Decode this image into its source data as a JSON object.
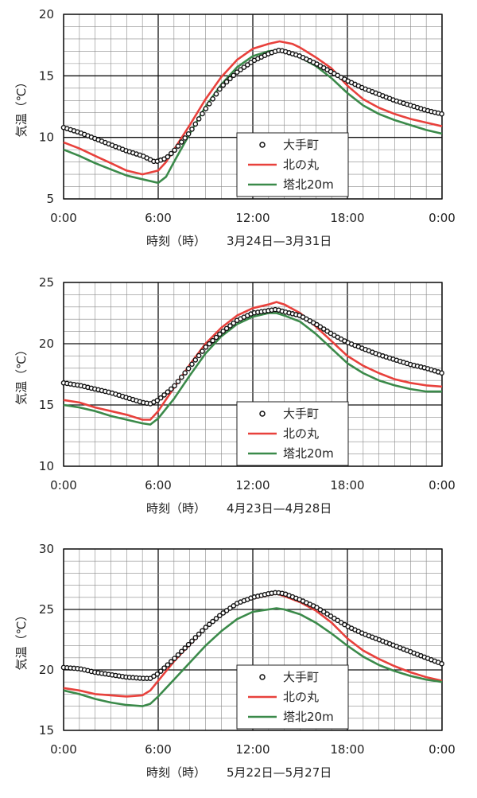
{
  "chart_data": [
    {
      "type": "line",
      "xlabel": "時刻（時）",
      "period": "3月24日—3月31日",
      "ylabel": "気温（℃）",
      "ylim": [
        5,
        20
      ],
      "yticks": [
        "5",
        "10",
        "15",
        "20"
      ],
      "xlim": [
        0,
        24
      ],
      "xticks": [
        "0:00",
        "6:00",
        "12:00",
        "18:00",
        "0:00"
      ],
      "grid": true,
      "legend": "center-right",
      "series": [
        {
          "name": "大手町",
          "color": "#111111",
          "marker": "circle",
          "x": [
            0,
            1,
            2,
            3,
            4,
            5,
            5.8,
            6.5,
            7,
            8,
            9,
            10,
            11,
            12,
            13,
            13.7,
            14.5,
            15,
            16,
            17,
            18,
            19,
            20,
            21,
            22,
            23,
            24
          ],
          "y": [
            10.8,
            10.4,
            9.9,
            9.4,
            8.9,
            8.5,
            8.0,
            8.3,
            8.9,
            10.4,
            12.3,
            14.1,
            15.3,
            16.2,
            16.8,
            17.1,
            16.8,
            16.6,
            16.0,
            15.3,
            14.6,
            14.0,
            13.5,
            13.0,
            12.6,
            12.2,
            11.9
          ]
        },
        {
          "name": "北の丸",
          "color": "#e8413c",
          "marker": "none",
          "x": [
            0,
            1,
            2,
            3,
            4,
            5,
            6,
            6.5,
            7,
            8,
            9,
            10,
            11,
            12,
            13,
            13.7,
            14.5,
            15,
            16,
            17,
            18,
            19,
            20,
            21,
            22,
            23,
            24
          ],
          "y": [
            9.6,
            9.1,
            8.5,
            7.9,
            7.3,
            7.0,
            7.3,
            8.0,
            9.0,
            11.0,
            13.1,
            14.9,
            16.3,
            17.2,
            17.6,
            17.8,
            17.6,
            17.3,
            16.5,
            15.6,
            14.2,
            13.1,
            12.4,
            11.9,
            11.5,
            11.2,
            10.9
          ]
        },
        {
          "name": "塔北20m",
          "color": "#3b8a4a",
          "marker": "none",
          "x": [
            0,
            1,
            2,
            3,
            4,
            5,
            6,
            6.5,
            7,
            8,
            9,
            10,
            11,
            12,
            13,
            13.7,
            14.5,
            15,
            16,
            17,
            18,
            19,
            20,
            21,
            22,
            23,
            24
          ],
          "y": [
            9.0,
            8.5,
            7.9,
            7.4,
            6.9,
            6.6,
            6.3,
            6.8,
            8.0,
            10.3,
            12.5,
            14.3,
            15.7,
            16.6,
            17.0,
            17.1,
            16.8,
            16.5,
            15.8,
            14.8,
            13.6,
            12.6,
            11.9,
            11.4,
            11.0,
            10.6,
            10.3
          ]
        }
      ]
    },
    {
      "type": "line",
      "xlabel": "時刻（時）",
      "period": "4月23日—4月28日",
      "ylabel": "気温（℃）",
      "ylim": [
        10,
        25
      ],
      "yticks": [
        "10",
        "15",
        "20",
        "25"
      ],
      "xlim": [
        0,
        24
      ],
      "xticks": [
        "0:00",
        "6:00",
        "12:00",
        "18:00",
        "0:00"
      ],
      "grid": true,
      "legend": "center-right",
      "series": [
        {
          "name": "大手町",
          "color": "#111111",
          "marker": "circle",
          "x": [
            0,
            1,
            2,
            3,
            4,
            5,
            5.5,
            6,
            7,
            8,
            9,
            10,
            11,
            12,
            13,
            13.5,
            14,
            15,
            16,
            17,
            18,
            19,
            20,
            21,
            22,
            23,
            24
          ],
          "y": [
            16.8,
            16.6,
            16.3,
            16.0,
            15.6,
            15.2,
            15.1,
            15.4,
            16.5,
            18.1,
            19.7,
            20.9,
            21.9,
            22.5,
            22.7,
            22.8,
            22.6,
            22.3,
            21.6,
            20.8,
            20.1,
            19.6,
            19.1,
            18.7,
            18.3,
            18.0,
            17.6
          ]
        },
        {
          "name": "北の丸",
          "color": "#e8413c",
          "marker": "none",
          "x": [
            0,
            1,
            2,
            3,
            4,
            5,
            5.5,
            6,
            7,
            8,
            9,
            10,
            11,
            12,
            13,
            13.5,
            14,
            15,
            16,
            17,
            18,
            19,
            20,
            21,
            22,
            23,
            24
          ],
          "y": [
            15.4,
            15.2,
            14.8,
            14.5,
            14.2,
            13.8,
            13.8,
            14.5,
            16.4,
            18.3,
            20.0,
            21.3,
            22.3,
            22.9,
            23.2,
            23.4,
            23.2,
            22.5,
            21.4,
            20.2,
            19.0,
            18.2,
            17.6,
            17.1,
            16.8,
            16.6,
            16.5
          ]
        },
        {
          "name": "塔北20m",
          "color": "#3b8a4a",
          "marker": "none",
          "x": [
            0,
            1,
            2,
            3,
            4,
            5,
            5.5,
            6,
            7,
            8,
            9,
            10,
            11,
            12,
            13,
            13.5,
            14,
            15,
            16,
            17,
            18,
            19,
            20,
            21,
            22,
            23,
            24
          ],
          "y": [
            15.0,
            14.8,
            14.5,
            14.1,
            13.8,
            13.5,
            13.4,
            13.9,
            15.5,
            17.4,
            19.2,
            20.6,
            21.6,
            22.2,
            22.5,
            22.5,
            22.3,
            21.8,
            20.8,
            19.6,
            18.4,
            17.6,
            17.0,
            16.6,
            16.3,
            16.1,
            16.1
          ]
        }
      ]
    },
    {
      "type": "line",
      "xlabel": "時刻（時）",
      "period": "5月22日—5月27日",
      "ylabel": "気温（℃）",
      "ylim": [
        15,
        30
      ],
      "yticks": [
        "15",
        "20",
        "25",
        "30"
      ],
      "xlim": [
        0,
        24
      ],
      "xticks": [
        "0:00",
        "6:00",
        "12:00",
        "18:00",
        "0:00"
      ],
      "grid": true,
      "legend": "center-right",
      "series": [
        {
          "name": "大手町",
          "color": "#111111",
          "marker": "circle",
          "x": [
            0,
            1,
            2,
            3,
            4,
            5,
            5.5,
            6,
            7,
            8,
            9,
            10,
            11,
            12,
            13,
            13.5,
            14,
            15,
            16,
            17,
            18,
            19,
            20,
            21,
            22,
            23,
            24
          ],
          "y": [
            20.2,
            20.1,
            19.8,
            19.6,
            19.4,
            19.3,
            19.3,
            19.7,
            20.9,
            22.2,
            23.5,
            24.6,
            25.5,
            26.0,
            26.3,
            26.4,
            26.3,
            25.8,
            25.2,
            24.4,
            23.6,
            23.0,
            22.5,
            22.0,
            21.5,
            21.0,
            20.5
          ]
        },
        {
          "name": "北の丸",
          "color": "#e8413c",
          "marker": "none",
          "x": [
            0,
            1,
            2,
            3,
            4,
            5,
            5.5,
            6,
            7,
            8,
            9,
            10,
            11,
            12,
            13,
            13.5,
            14,
            15,
            16,
            17,
            18,
            19,
            20,
            21,
            22,
            23,
            24
          ],
          "y": [
            18.5,
            18.3,
            18.0,
            17.9,
            17.8,
            17.9,
            18.3,
            19.1,
            20.7,
            22.1,
            23.5,
            24.6,
            25.5,
            25.9,
            26.2,
            26.3,
            26.1,
            25.6,
            24.9,
            23.9,
            22.6,
            21.6,
            20.9,
            20.3,
            19.8,
            19.4,
            19.1
          ]
        },
        {
          "name": "塔北20m",
          "color": "#3b8a4a",
          "marker": "none",
          "x": [
            0,
            1,
            2,
            3,
            4,
            5,
            5.5,
            6,
            7,
            8,
            9,
            10,
            11,
            12,
            13,
            13.5,
            14,
            15,
            16,
            17,
            18,
            19,
            20,
            21,
            22,
            23,
            24
          ],
          "y": [
            18.3,
            18.0,
            17.6,
            17.3,
            17.1,
            17.0,
            17.2,
            17.8,
            19.2,
            20.6,
            22.0,
            23.2,
            24.2,
            24.8,
            25.0,
            25.1,
            25.0,
            24.6,
            23.9,
            23.0,
            22.0,
            21.1,
            20.4,
            19.9,
            19.5,
            19.2,
            19.0
          ]
        }
      ]
    }
  ]
}
